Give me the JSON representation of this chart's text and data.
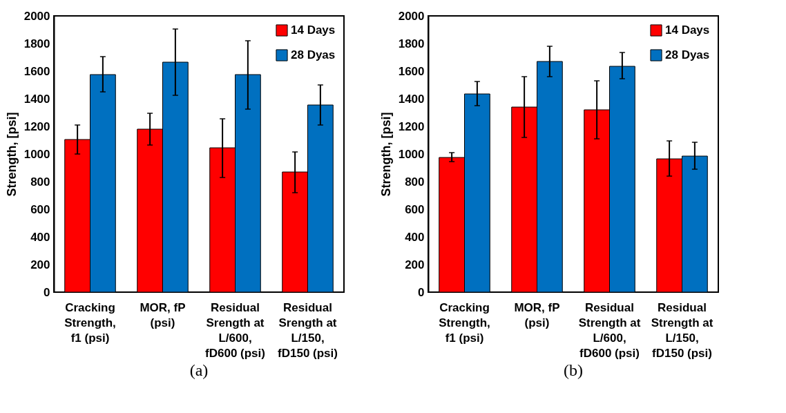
{
  "chart_data": [
    {
      "type": "bar",
      "ylabel": "Strength, [psi]",
      "categories": [
        "Cracking\nStrength,\nf1 (psi)",
        "MOR, fP\n(psi)",
        "Residual\nSrength at\nL/600,\nfD600 (psi)",
        "Residual\nSrength at\nL/150,\nfD150 (psi)"
      ],
      "series": [
        {
          "name": "14 Days",
          "color": "#ff0000",
          "values": [
            1105,
            1180,
            1045,
            870
          ],
          "errors": [
            [
              1000,
              1210
            ],
            [
              1065,
              1295
            ],
            [
              830,
              1255
            ],
            [
              720,
              1015
            ]
          ]
        },
        {
          "name": "28 Dyas",
          "color": "#0070c0",
          "values": [
            1575,
            1665,
            1575,
            1355
          ],
          "errors": [
            [
              1450,
              1705
            ],
            [
              1425,
              1905
            ],
            [
              1325,
              1820
            ],
            [
              1210,
              1500
            ]
          ]
        }
      ],
      "ylim": [
        0,
        2000
      ],
      "yticks": [
        0,
        200,
        400,
        600,
        800,
        1000,
        1200,
        1400,
        1600,
        1800,
        2000
      ],
      "grid": false,
      "legend": "top right",
      "annotations": [
        "(a)"
      ]
    },
    {
      "type": "bar",
      "ylabel": "Strength, [psi]",
      "categories": [
        "Cracking\nStrength,\nf1 (psi)",
        "MOR, fP\n(psi)",
        "Residual\nStrength at\nL/600,\nfD600 (psi)",
        "Residual\nStrength at\nL/150,\nfD150 (psi)"
      ],
      "series": [
        {
          "name": "14 Days",
          "color": "#ff0000",
          "values": [
            975,
            1340,
            1320,
            965
          ],
          "errors": [
            [
              945,
              1010
            ],
            [
              1120,
              1560
            ],
            [
              1110,
              1530
            ],
            [
              840,
              1095
            ]
          ]
        },
        {
          "name": "28 Dyas",
          "color": "#0070c0",
          "values": [
            1435,
            1670,
            1635,
            985
          ],
          "errors": [
            [
              1350,
              1525
            ],
            [
              1560,
              1780
            ],
            [
              1545,
              1735
            ],
            [
              890,
              1085
            ]
          ]
        }
      ],
      "ylim": [
        0,
        2000
      ],
      "yticks": [
        0,
        200,
        400,
        600,
        800,
        1000,
        1200,
        1400,
        1600,
        1800,
        2000
      ],
      "grid": false,
      "legend": "top right",
      "annotations": [
        "(b)"
      ]
    }
  ]
}
